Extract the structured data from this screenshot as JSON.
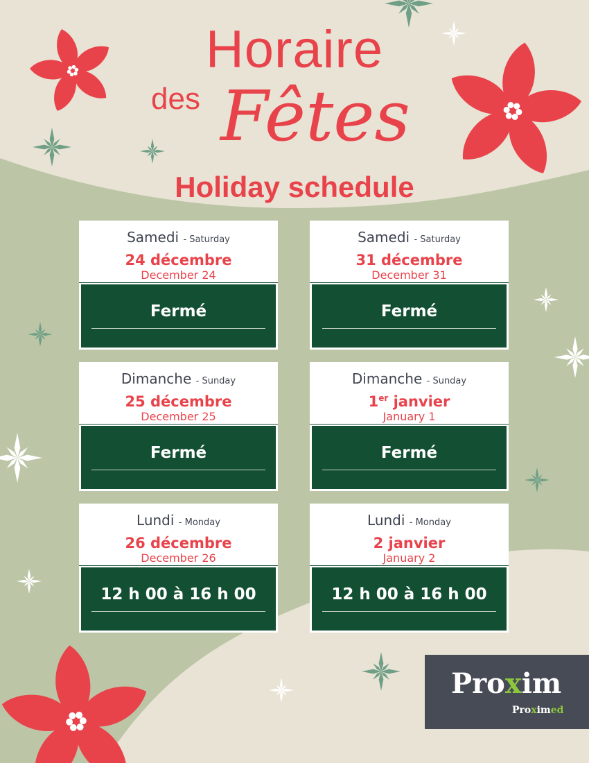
{
  "title": {
    "line1": "Horaire",
    "des": "des",
    "fetes": "Fêtes",
    "subtitle": "Holiday schedule"
  },
  "colors": {
    "accent": "#e8434b",
    "panel": "#124f33",
    "background": "#e9e3d5",
    "blob": "#bcc6a6",
    "logo_bg": "#474b55",
    "logo_green": "#8dc63f"
  },
  "cards": [
    {
      "day_fr": "Samedi",
      "day_en": "- Saturday",
      "date_fr": "24 décembre",
      "date_sup": "",
      "date_fr_rest": "",
      "date_en": "December 24",
      "hours": "Fermé"
    },
    {
      "day_fr": "Samedi",
      "day_en": "- Saturday",
      "date_fr": "31 décembre",
      "date_sup": "",
      "date_fr_rest": "",
      "date_en": "December 31",
      "hours": "Fermé"
    },
    {
      "day_fr": "Dimanche",
      "day_en": "- Sunday",
      "date_fr": "25 décembre",
      "date_sup": "",
      "date_fr_rest": "",
      "date_en": "December 25",
      "hours": "Fermé"
    },
    {
      "day_fr": "Dimanche",
      "day_en": "- Sunday",
      "date_fr": "1",
      "date_sup": "er",
      "date_fr_rest": " janvier",
      "date_en": "January 1",
      "hours": "Fermé"
    },
    {
      "day_fr": "Lundi",
      "day_en": "- Monday",
      "date_fr": "26 décembre",
      "date_sup": "",
      "date_fr_rest": "",
      "date_en": "December 26",
      "hours": "12 h 00 à 16 h 00"
    },
    {
      "day_fr": "Lundi",
      "day_en": "- Monday",
      "date_fr": "2 janvier",
      "date_sup": "",
      "date_fr_rest": "",
      "date_en": "January 2",
      "hours": "12 h 00 à 16 h 00"
    }
  ],
  "logo": {
    "main_pre": "Pro",
    "main_x": "x",
    "main_post": "im",
    "sub_pre": "Pro",
    "sub_x": "x",
    "sub_mid": "im",
    "sub_ed": "ed"
  }
}
